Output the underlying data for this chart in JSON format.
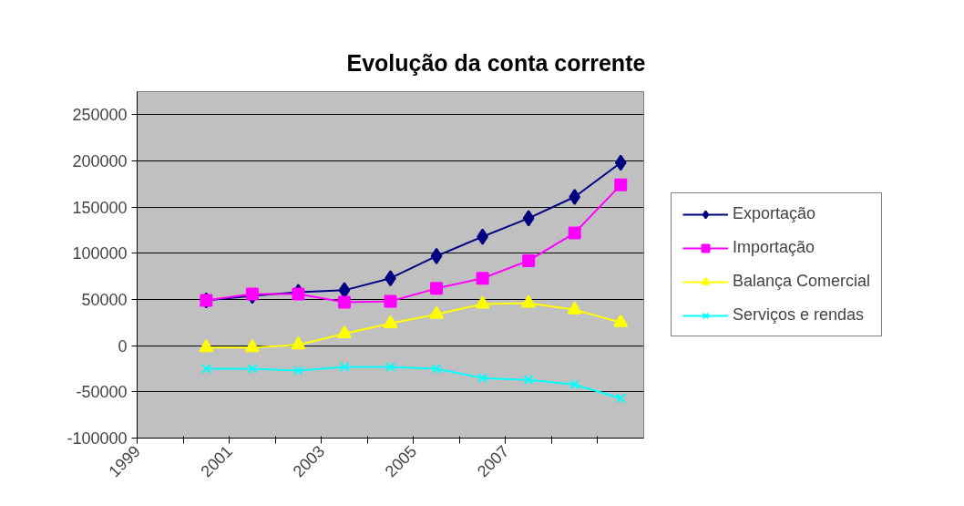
{
  "chart_data": {
    "type": "line",
    "title": "Evolução da conta corrente",
    "x": [
      2000.5,
      2001.5,
      2002.5,
      2003.5,
      2004.5,
      2005.5,
      2006.5,
      2007.5,
      2008.5,
      2009.5
    ],
    "series": [
      {
        "name": "Exportação",
        "color": "#000080",
        "marker": "diamond",
        "values": [
          49000,
          54000,
          58000,
          60000,
          73000,
          97000,
          118000,
          138000,
          161000,
          198000
        ]
      },
      {
        "name": "Importação",
        "color": "#ff00ff",
        "marker": "square",
        "values": [
          49000,
          56000,
          56000,
          47000,
          48000,
          62000,
          73000,
          92000,
          122000,
          174000
        ]
      },
      {
        "name": "Balança Comercial",
        "color": "#ffff00",
        "marker": "triangle",
        "values": [
          -2000,
          -2000,
          1000,
          13000,
          24000,
          34000,
          45000,
          46000,
          39000,
          25000
        ]
      },
      {
        "name": "Serviços e rendas",
        "color": "#00ffff",
        "marker": "cross",
        "values": [
          -25000,
          -25000,
          -27000,
          -23000,
          -23000,
          -25000,
          -35000,
          -37000,
          -42000,
          -57000
        ]
      }
    ],
    "xlim": [
      1999,
      2010
    ],
    "xticks": [
      1999,
      {
        "value": 2000,
        "label": null
      },
      2001,
      {
        "value": 2002,
        "label": null
      },
      2003,
      {
        "value": 2004,
        "label": null
      },
      2005,
      {
        "value": 2006,
        "label": null
      },
      2007,
      {
        "value": 2008,
        "label": null
      },
      {
        "value": 2009,
        "label": null
      }
    ],
    "ylim": [
      -100000,
      275000
    ],
    "yticks": [
      -100000,
      -50000,
      0,
      50000,
      100000,
      150000,
      200000,
      250000
    ],
    "grid": "y",
    "legend": "right",
    "line_style": "solid"
  }
}
